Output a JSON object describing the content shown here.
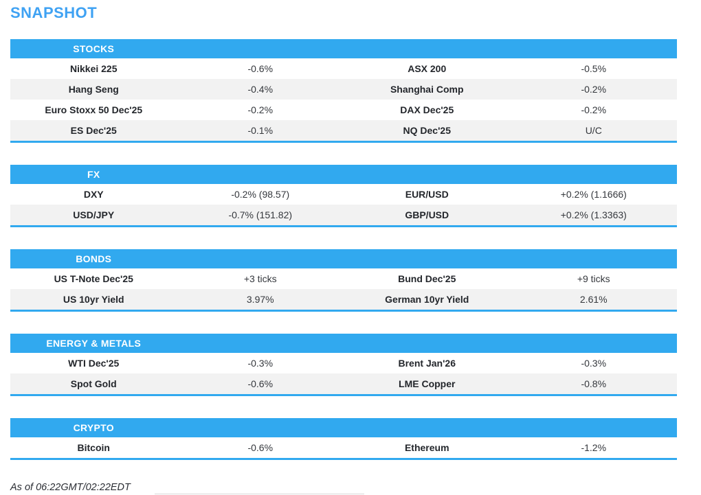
{
  "title": "SNAPSHOT",
  "colors": {
    "accent": "#31a9ef",
    "title": "#3fa2f3",
    "stripe": "#f2f2f2"
  },
  "sections": [
    {
      "title": "STOCKS",
      "rows": [
        [
          "Nikkei 225",
          "-0.6%",
          "ASX 200",
          "-0.5%"
        ],
        [
          "Hang Seng",
          "-0.4%",
          "Shanghai Comp",
          "-0.2%"
        ],
        [
          "Euro Stoxx 50 Dec'25",
          "-0.2%",
          "DAX Dec'25",
          "-0.2%"
        ],
        [
          "ES Dec'25",
          "-0.1%",
          "NQ Dec'25",
          "U/C"
        ]
      ]
    },
    {
      "title": "FX",
      "rows": [
        [
          "DXY",
          "-0.2% (98.57)",
          "EUR/USD",
          "+0.2% (1.1666)"
        ],
        [
          "USD/JPY",
          "-0.7% (151.82)",
          "GBP/USD",
          "+0.2% (1.3363)"
        ]
      ]
    },
    {
      "title": "BONDS",
      "rows": [
        [
          "US T-Note Dec'25",
          "+3 ticks",
          "Bund Dec'25",
          "+9 ticks"
        ],
        [
          "US 10yr Yield",
          "3.97%",
          "German 10yr Yield",
          "2.61%"
        ]
      ]
    },
    {
      "title": "ENERGY & METALS",
      "rows": [
        [
          "WTI Dec'25",
          "-0.3%",
          "Brent Jan'26",
          "-0.3%"
        ],
        [
          "Spot Gold",
          "-0.6%",
          "LME Copper",
          "-0.8%"
        ]
      ]
    },
    {
      "title": "CRYPTO",
      "rows": [
        [
          "Bitcoin",
          "-0.6%",
          "Ethereum",
          "-1.2%"
        ]
      ]
    }
  ],
  "footer": "As of 06:22GMT/02:22EDT"
}
